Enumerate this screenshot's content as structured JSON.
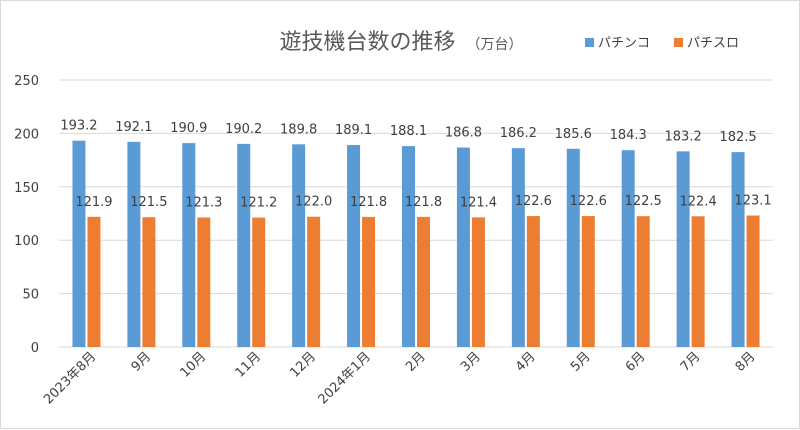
{
  "chart_data": {
    "type": "bar",
    "title": "遊技機台数の推移",
    "subtitle": "（万台）",
    "categories": [
      "2023年8月",
      "9月",
      "10月",
      "11月",
      "12月",
      "2024年1月",
      "2月",
      "3月",
      "4月",
      "5月",
      "6月",
      "7月",
      "8月"
    ],
    "series": [
      {
        "name": "パチンコ",
        "color": "#5B9BD5",
        "values": [
          193.2,
          192.1,
          190.9,
          190.2,
          189.8,
          189.1,
          188.1,
          186.8,
          186.2,
          185.6,
          184.3,
          183.2,
          182.5
        ],
        "labels": [
          "193.2",
          "192.1",
          "190.9",
          "190.2",
          "189.8",
          "189.1",
          "188.1",
          "186.8",
          "186.2",
          "185.6",
          "184.3",
          "183.2",
          "182.5"
        ]
      },
      {
        "name": "パチスロ",
        "color": "#ED7D31",
        "values": [
          121.9,
          121.5,
          121.3,
          121.2,
          122.0,
          121.8,
          121.8,
          121.4,
          122.6,
          122.6,
          122.5,
          122.4,
          123.1
        ],
        "labels": [
          "121.9",
          "121.5",
          "121.3",
          "121.2",
          "122.0",
          "121.8",
          "121.8",
          "121.4",
          "122.6",
          "122.6",
          "122.5",
          "122.4",
          "123.1"
        ]
      }
    ],
    "ylim": [
      0,
      250
    ],
    "yticks": [
      "0",
      "50",
      "100",
      "150",
      "200",
      "250"
    ],
    "grid": true,
    "legend_position": "top-right"
  }
}
